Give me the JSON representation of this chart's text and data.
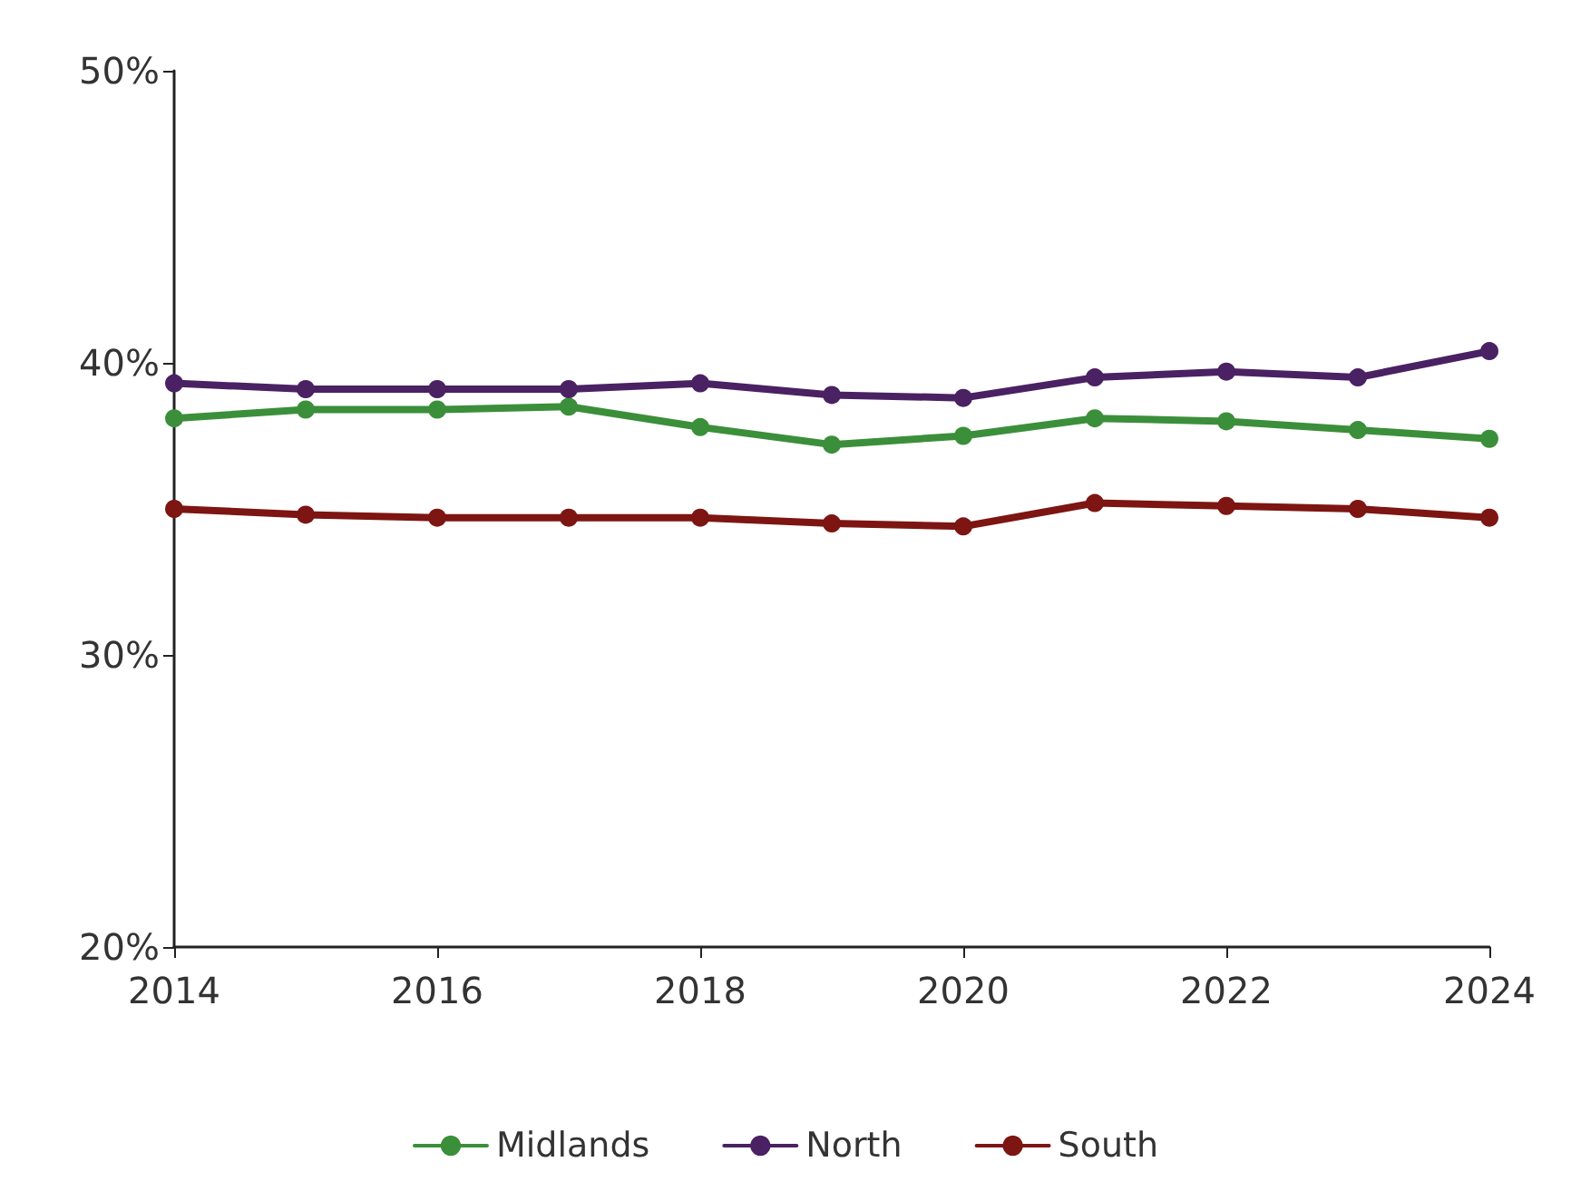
{
  "chart_data": {
    "type": "line",
    "x": [
      2014,
      2015,
      2016,
      2017,
      2018,
      2019,
      2020,
      2021,
      2022,
      2023,
      2024
    ],
    "series": [
      {
        "name": "Midlands",
        "color": "#3b8f3a",
        "values": [
          38.1,
          38.4,
          38.4,
          38.5,
          37.8,
          37.2,
          37.5,
          38.1,
          38.0,
          37.7,
          37.4
        ]
      },
      {
        "name": "North",
        "color": "#4a2162",
        "values": [
          39.3,
          39.1,
          39.1,
          39.1,
          39.3,
          38.9,
          38.8,
          39.5,
          39.7,
          39.5,
          40.4
        ]
      },
      {
        "name": "South",
        "color": "#7d1512",
        "values": [
          35.0,
          34.8,
          34.7,
          34.7,
          34.7,
          34.5,
          34.4,
          35.2,
          35.1,
          35.0,
          34.7
        ]
      }
    ],
    "xlim": [
      2014,
      2024
    ],
    "xticks": [
      2014,
      2016,
      2018,
      2020,
      2022,
      2024
    ],
    "ylim": [
      20,
      50
    ],
    "yticks": [
      {
        "value": 20,
        "label": "20%"
      },
      {
        "value": 30,
        "label": "30%"
      },
      {
        "value": 40,
        "label": "40%"
      },
      {
        "value": 50,
        "label": "50%"
      }
    ],
    "grid": false,
    "legend": "bottom",
    "marker": "circle",
    "line_style": "solid"
  }
}
